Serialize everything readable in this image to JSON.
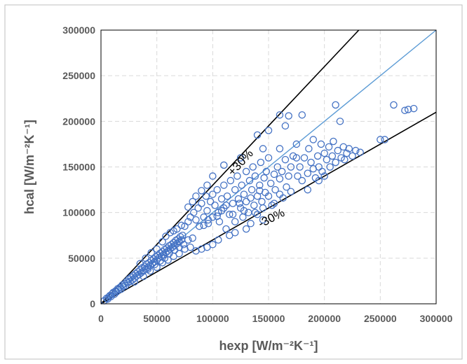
{
  "chart_data": {
    "type": "scatter",
    "title": "",
    "xlabel": "hexp [W/m⁻²K⁻¹]",
    "ylabel": "hcal [W/m⁻²K⁻¹]",
    "xlim": [
      0,
      300000
    ],
    "ylim": [
      0,
      300000
    ],
    "x_ticks": [
      "0",
      "50000",
      "100000",
      "150000",
      "200000",
      "250000",
      "300000"
    ],
    "y_ticks": [
      "0",
      "50000",
      "100000",
      "150000",
      "200000",
      "250000",
      "300000"
    ],
    "grid": "dashed",
    "legend": "none",
    "colors": {
      "points": "#4472c4",
      "parity_line": "#5b9bd5",
      "bound_lines": "#000000",
      "grid": "#d9d9d9",
      "axis_text": "#595959",
      "frame": "#000000"
    },
    "reference_lines": [
      {
        "label": "",
        "slope": 1.0
      },
      {
        "label": "+30%",
        "slope": 1.3
      },
      {
        "label": "-30%",
        "slope": 0.7
      }
    ],
    "annotations": {
      "upper": "+30%",
      "lower": "-30%"
    },
    "series": [
      {
        "marker": "open-circle",
        "points": [
          [
            3000,
            3500
          ],
          [
            5000,
            6000
          ],
          [
            6000,
            5200
          ],
          [
            7000,
            7500
          ],
          [
            8000,
            9000
          ],
          [
            9000,
            8000
          ],
          [
            10000,
            11000
          ],
          [
            11000,
            12500
          ],
          [
            12000,
            10500
          ],
          [
            13000,
            14000
          ],
          [
            14000,
            13000
          ],
          [
            15000,
            16500
          ],
          [
            16000,
            15500
          ],
          [
            17000,
            18000
          ],
          [
            18000,
            16000
          ],
          [
            19000,
            20500
          ],
          [
            20000,
            19000
          ],
          [
            21000,
            22000
          ],
          [
            22000,
            20000
          ],
          [
            23000,
            24500
          ],
          [
            24000,
            23000
          ],
          [
            25000,
            27000
          ],
          [
            26000,
            24500
          ],
          [
            27000,
            29000
          ],
          [
            28000,
            26000
          ],
          [
            29000,
            31000
          ],
          [
            30000,
            28000
          ],
          [
            31000,
            33000
          ],
          [
            32000,
            30500
          ],
          [
            33000,
            35000
          ],
          [
            34000,
            32000
          ],
          [
            35000,
            37000
          ],
          [
            36000,
            34000
          ],
          [
            37000,
            39500
          ],
          [
            38000,
            36000
          ],
          [
            39000,
            41000
          ],
          [
            40000,
            38000
          ],
          [
            41000,
            43500
          ],
          [
            42000,
            40000
          ],
          [
            43000,
            45000
          ],
          [
            44000,
            42000
          ],
          [
            45000,
            47500
          ],
          [
            46000,
            44000
          ],
          [
            47000,
            49000
          ],
          [
            48000,
            46000
          ],
          [
            49000,
            51500
          ],
          [
            50000,
            48000
          ],
          [
            51000,
            53000
          ],
          [
            52000,
            50500
          ],
          [
            53000,
            55500
          ],
          [
            54000,
            52000
          ],
          [
            55000,
            57000
          ],
          [
            56000,
            54000
          ],
          [
            57000,
            59500
          ],
          [
            58000,
            56000
          ],
          [
            59000,
            61000
          ],
          [
            60000,
            58000
          ],
          [
            61000,
            63500
          ],
          [
            62000,
            60000
          ],
          [
            63000,
            65000
          ],
          [
            64000,
            62000
          ],
          [
            65000,
            67000
          ],
          [
            66000,
            64000
          ],
          [
            67000,
            69500
          ],
          [
            68000,
            66000
          ],
          [
            69000,
            71000
          ],
          [
            70000,
            68000
          ],
          [
            71000,
            73500
          ],
          [
            72000,
            70000
          ],
          [
            73000,
            75000
          ],
          [
            35000,
            44000
          ],
          [
            40000,
            50000
          ],
          [
            45000,
            56000
          ],
          [
            50000,
            60000
          ],
          [
            55000,
            68000
          ],
          [
            58000,
            74000
          ],
          [
            62000,
            78000
          ],
          [
            65000,
            80000
          ],
          [
            68000,
            82000
          ],
          [
            72000,
            86000
          ],
          [
            30000,
            24000
          ],
          [
            38000,
            30000
          ],
          [
            44000,
            36000
          ],
          [
            50000,
            40000
          ],
          [
            55000,
            45000
          ],
          [
            60000,
            48000
          ],
          [
            65000,
            52000
          ],
          [
            70000,
            55000
          ],
          [
            75000,
            60000
          ],
          [
            80000,
            62000
          ],
          [
            42000,
            38000
          ],
          [
            48000,
            43000
          ],
          [
            53000,
            47000
          ],
          [
            57000,
            50000
          ],
          [
            61000,
            55000
          ],
          [
            66000,
            59000
          ],
          [
            70000,
            62000
          ],
          [
            74000,
            65000
          ],
          [
            78000,
            70000
          ],
          [
            82000,
            72000
          ],
          [
            75000,
            85000
          ],
          [
            78000,
            90000
          ],
          [
            80000,
            95000
          ],
          [
            83000,
            100000
          ],
          [
            85000,
            92000
          ],
          [
            87000,
            105000
          ],
          [
            88000,
            85000
          ],
          [
            90000,
            110000
          ],
          [
            92000,
            95000
          ],
          [
            94000,
            118000
          ],
          [
            95000,
            102000
          ],
          [
            96000,
            88000
          ],
          [
            98000,
            112000
          ],
          [
            100000,
            120000
          ],
          [
            100000,
            95000
          ],
          [
            102000,
            108000
          ],
          [
            104000,
            125000
          ],
          [
            105000,
            100000
          ],
          [
            106000,
            90000
          ],
          [
            108000,
            115000
          ],
          [
            110000,
            130000
          ],
          [
            110000,
            105000
          ],
          [
            112000,
            82000
          ],
          [
            113000,
            118000
          ],
          [
            115000,
            98000
          ],
          [
            116000,
            135000
          ],
          [
            118000,
            110000
          ],
          [
            120000,
            125000
          ],
          [
            120000,
            90000
          ],
          [
            122000,
            140000
          ],
          [
            123000,
            115000
          ],
          [
            125000,
            105000
          ],
          [
            126000,
            130000
          ],
          [
            127000,
            95000
          ],
          [
            128000,
            120000
          ],
          [
            130000,
            145000
          ],
          [
            130000,
            112000
          ],
          [
            132000,
            100000
          ],
          [
            133000,
            135000
          ],
          [
            134000,
            88000
          ],
          [
            135000,
            125000
          ],
          [
            136000,
            150000
          ],
          [
            137000,
            108000
          ],
          [
            138000,
            140000
          ],
          [
            140000,
            118000
          ],
          [
            140000,
            98000
          ],
          [
            142000,
            130000
          ],
          [
            143000,
            155000
          ],
          [
            144000,
            112000
          ],
          [
            145000,
            105000
          ],
          [
            146000,
            138000
          ],
          [
            147000,
            122000
          ],
          [
            148000,
            145000
          ],
          [
            150000,
            118000
          ],
          [
            150000,
            160000
          ],
          [
            152000,
            132000
          ],
          [
            153000,
            108000
          ],
          [
            155000,
            142000
          ],
          [
            156000,
            125000
          ],
          [
            158000,
            150000
          ],
          [
            160000,
            137000
          ],
          [
            160000,
            170000
          ],
          [
            162000,
            145000
          ],
          [
            163000,
            116000
          ],
          [
            165000,
            158000
          ],
          [
            166000,
            128000
          ],
          [
            168000,
            140000
          ],
          [
            170000,
            150000
          ],
          [
            170000,
            123000
          ],
          [
            172000,
            162000
          ],
          [
            175000,
            175000
          ],
          [
            176000,
            140000
          ],
          [
            178000,
            150000
          ],
          [
            180000,
            135000
          ],
          [
            182000,
            160000
          ],
          [
            185000,
            143000
          ],
          [
            186000,
            170000
          ],
          [
            188000,
            155000
          ],
          [
            190000,
            148000
          ],
          [
            190000,
            180000
          ],
          [
            192000,
            138000
          ],
          [
            194000,
            162000
          ],
          [
            195000,
            150000
          ],
          [
            197000,
            175000
          ],
          [
            198000,
            145000
          ],
          [
            200000,
            165000
          ],
          [
            200000,
            140000
          ],
          [
            202000,
            158000
          ],
          [
            204000,
            172000
          ],
          [
            205000,
            150000
          ],
          [
            207000,
            162000
          ],
          [
            208000,
            178000
          ],
          [
            210000,
            155000
          ],
          [
            210000,
            218000
          ],
          [
            212000,
            168000
          ],
          [
            214000,
            200000
          ],
          [
            215000,
            160000
          ],
          [
            217000,
            172000
          ],
          [
            218000,
            158000
          ],
          [
            220000,
            165000
          ],
          [
            222000,
            170000
          ],
          [
            225000,
            162000
          ],
          [
            228000,
            168000
          ],
          [
            232000,
            166000
          ],
          [
            160000,
            207000
          ],
          [
            165000,
            195000
          ],
          [
            168000,
            206000
          ],
          [
            180000,
            207000
          ],
          [
            250000,
            180000
          ],
          [
            254000,
            180000
          ],
          [
            262000,
            218000
          ],
          [
            272000,
            212000
          ],
          [
            275000,
            213000
          ],
          [
            280000,
            214000
          ],
          [
            140000,
            185000
          ],
          [
            150000,
            190000
          ],
          [
            145000,
            170000
          ],
          [
            125000,
            160000
          ],
          [
            110000,
            152000
          ],
          [
            100000,
            140000
          ],
          [
            95000,
            130000
          ],
          [
            90000,
            124000
          ],
          [
            85000,
            118000
          ],
          [
            82000,
            112000
          ],
          [
            78000,
            106000
          ],
          [
            120000,
            78000
          ],
          [
            130000,
            82000
          ],
          [
            115000,
            75000
          ],
          [
            105000,
            70000
          ],
          [
            100000,
            65000
          ],
          [
            95000,
            62000
          ],
          [
            90000,
            60000
          ],
          [
            85000,
            58000
          ],
          [
            138000,
            100000
          ],
          [
            145000,
            92000
          ],
          [
            155000,
            110000
          ],
          [
            160000,
            120000
          ],
          [
            175000,
            160000
          ],
          [
            185000,
            125000
          ],
          [
            195000,
            135000
          ],
          [
            92000,
            86000
          ],
          [
            96000,
            92000
          ],
          [
            104000,
            96000
          ],
          [
            108000,
            102000
          ],
          [
            112000,
            108000
          ],
          [
            118000,
            98000
          ],
          [
            124000,
            110000
          ],
          [
            128000,
            102000
          ],
          [
            134000,
            116000
          ],
          [
            142000,
            124000
          ]
        ]
      }
    ]
  }
}
